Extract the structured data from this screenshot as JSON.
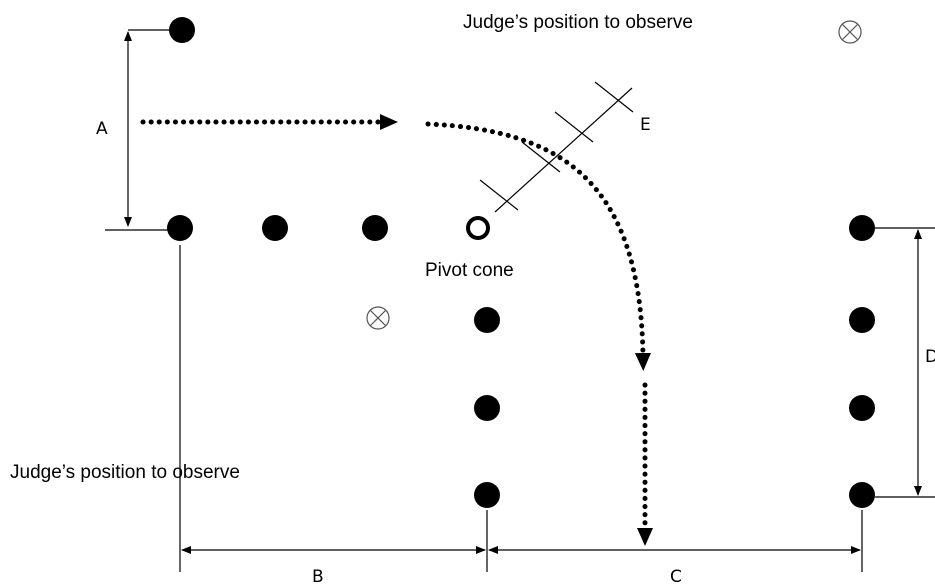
{
  "judge_labels": [
    "Judge’s position to observe",
    "Judge’s position to observe"
  ],
  "dimensions": [
    "A",
    "B",
    "C",
    "D",
    "E"
  ],
  "pivot_label": "Pivot cone"
}
